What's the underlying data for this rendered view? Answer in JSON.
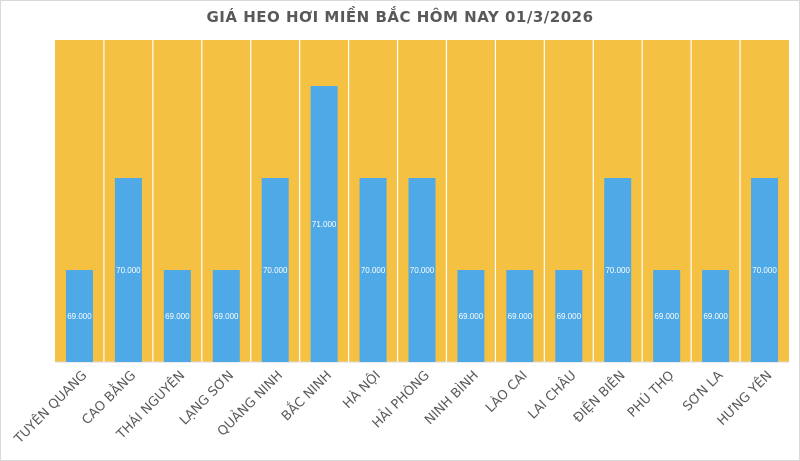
{
  "chart_data": {
    "type": "bar",
    "title": "GIÁ HEO HƠI MIỀN BẮC HÔM NAY 01/3/2026",
    "xlabel": "",
    "ylabel": "",
    "categories": [
      "TUYÊN QUANG",
      "CAO BẰNG",
      "THÁI NGUYÊN",
      "LẠNG SƠN",
      "QUẢNG NINH",
      "BẮC NINH",
      "HÀ NỘI",
      "HẢI PHÒNG",
      "NINH BÌNH",
      "LÀO CAI",
      "LAI CHÂU",
      "ĐIỆN BIÊN",
      "PHÚ THỌ",
      "SƠN LA",
      "HƯNG YÊN"
    ],
    "values": [
      69000,
      70000,
      69000,
      69000,
      70000,
      71000,
      70000,
      70000,
      69000,
      69000,
      69000,
      70000,
      69000,
      69000,
      70000
    ],
    "data_labels": [
      "69.000",
      "70.000",
      "69.000",
      "69.000",
      "70.000",
      "71.000",
      "70.000",
      "70.000",
      "69.000",
      "69.000",
      "69.000",
      "70.000",
      "69.000",
      "69.000",
      "70.000"
    ],
    "ylim": [
      68000,
      71500
    ],
    "grid": false,
    "legend": "none",
    "colors": {
      "bar": "#4EA9E6",
      "plot_background": "#F4C142",
      "separator": "#FFFFFF",
      "title": "#595959"
    }
  }
}
